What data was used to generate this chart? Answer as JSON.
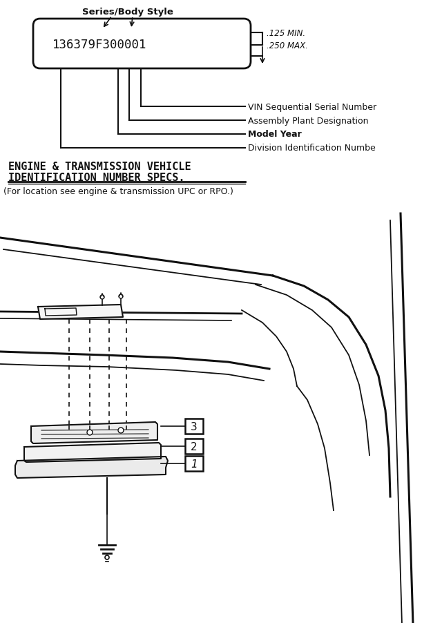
{
  "bg_color": "#ffffff",
  "vin_text": "136379F300001",
  "label_series": "Series/Body Style",
  "label_vin_seq": "VIN Sequential Serial Number",
  "label_plant": "Assembly Plant Designation",
  "label_model": "Model Year",
  "label_division": "Division Identification Numbe",
  "dim_text1": ".125 MIN.",
  "dim_text2": ".250 MAX.",
  "title_line1": "ENGINE & TRANSMISSION VEHICLE",
  "title_line2": "IDENTIFICATION NUMBER SPECS.",
  "subtitle": "(For location see engine & transmission UPC or RPO.)",
  "font_color": "#111111"
}
